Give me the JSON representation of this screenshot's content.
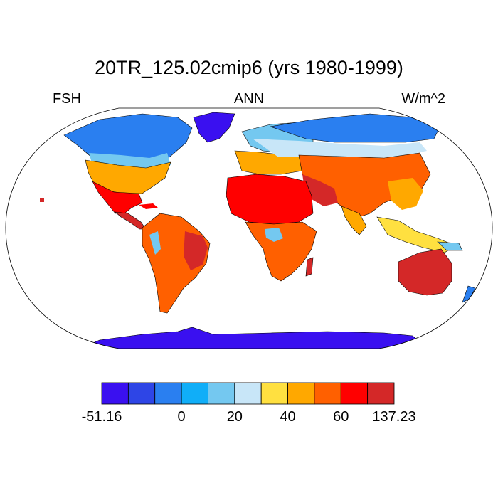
{
  "title": "20TR_125.02cmip6 (yrs 1980-1999)",
  "variable": "FSH",
  "season": "ANN",
  "units": "W/m^2",
  "colorbar": {
    "colors": [
      "#3a10f0",
      "#2e45e6",
      "#2a7ff0",
      "#10aef8",
      "#74c8f0",
      "#c8e6f8",
      "#ffe040",
      "#ffa800",
      "#ff6000",
      "#ff0000",
      "#d42828"
    ],
    "tick_labels": [
      {
        "text": "-51.16",
        "boundary": 0
      },
      {
        "text": "0",
        "boundary": 3
      },
      {
        "text": "20",
        "boundary": 5
      },
      {
        "text": "40",
        "boundary": 7
      },
      {
        "text": "60",
        "boundary": 9
      },
      {
        "text": "137.23",
        "boundary": 11
      }
    ]
  }
}
